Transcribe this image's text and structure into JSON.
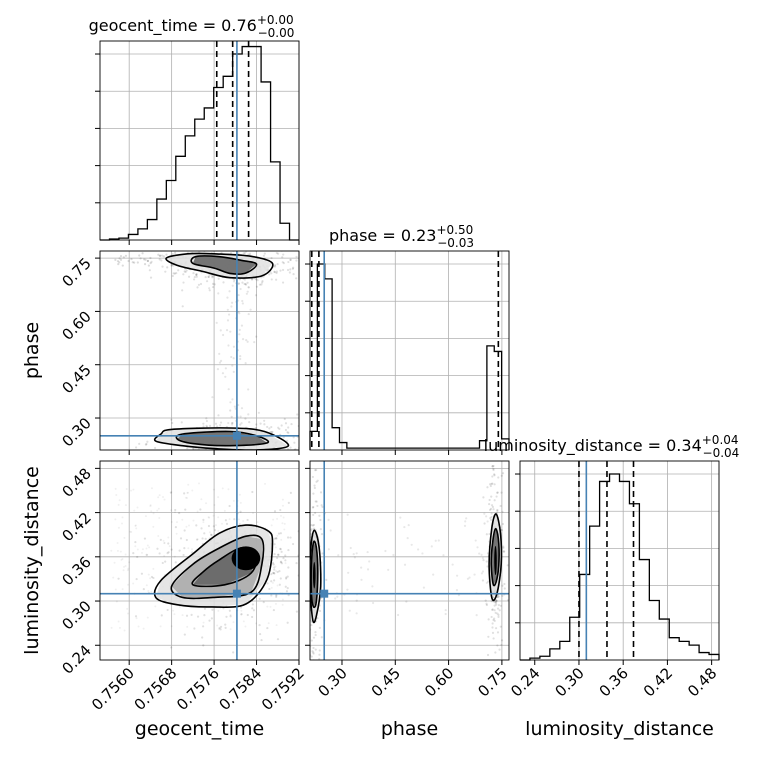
{
  "chart_data": {
    "type": "corner",
    "truths": {
      "geocent_time": 0.75803,
      "phase": 0.25,
      "luminosity_distance": 0.31
    },
    "parameters": [
      {
        "name": "geocent_time",
        "label": "geocent_time",
        "title_name": "geocent_time",
        "title_value": "0.76",
        "title_sup": "+0.00",
        "title_sub": "−0.00",
        "range": [
          0.75545,
          0.7592
        ],
        "ticks": [
          0.756,
          0.7568,
          0.7576,
          0.7584,
          0.7592
        ],
        "tick_labels": [
          "0.7560",
          "0.7568",
          "0.7576",
          "0.7584",
          "0.7592"
        ],
        "quantiles": [
          0.75765,
          0.75795,
          0.75825
        ],
        "hist": [
          0.0,
          0.005,
          0.01,
          0.03,
          0.06,
          0.11,
          0.22,
          0.32,
          0.45,
          0.56,
          0.65,
          0.71,
          0.82,
          0.88,
          1.0,
          1.04,
          1.04,
          0.85,
          0.42,
          0.09,
          0.0
        ]
      },
      {
        "name": "phase",
        "label": "phase",
        "title_name": "phase",
        "title_value": "0.23",
        "title_sup": "+0.50",
        "title_sub": "−0.03",
        "range": [
          0.21,
          0.77
        ],
        "ticks": [
          0.3,
          0.45,
          0.6,
          0.75
        ],
        "tick_labels": [
          "0.30",
          "0.45",
          "0.60",
          "0.75"
        ],
        "quantiles": [
          0.215,
          0.235,
          0.74
        ],
        "hist": [
          0.1,
          1.0,
          0.92,
          0.12,
          0.04,
          0.01,
          0.01,
          0.01,
          0.01,
          0.01,
          0.01,
          0.01,
          0.01,
          0.01,
          0.01,
          0.01,
          0.01,
          0.01,
          0.01,
          0.01,
          0.01,
          0.01,
          0.01,
          0.05,
          0.56,
          0.53,
          0.06
        ]
      },
      {
        "name": "luminosity_distance",
        "label": "luminosity_distance",
        "title_name": "luminosity_distance",
        "title_value": "0.34",
        "title_sup": "+0.04",
        "title_sub": "−0.04",
        "range": [
          0.22,
          0.49
        ],
        "ticks": [
          0.24,
          0.3,
          0.36,
          0.42,
          0.48
        ],
        "tick_labels": [
          "0.24",
          "0.30",
          "0.36",
          "0.42",
          "0.48"
        ],
        "quantiles": [
          0.3,
          0.338,
          0.374
        ],
        "hist": [
          0.0,
          0.01,
          0.02,
          0.06,
          0.1,
          0.23,
          0.46,
          0.72,
          0.96,
          1.0,
          0.96,
          0.84,
          0.54,
          0.32,
          0.22,
          0.12,
          0.1,
          0.08,
          0.04,
          0.03
        ]
      }
    ],
    "y_ticks": {
      "phase": {
        "ticks": [
          0.3,
          0.45,
          0.6,
          0.75
        ],
        "tick_labels": [
          "0.30",
          "0.45",
          "0.60",
          "0.75"
        ]
      },
      "luminosity_distance": {
        "ticks": [
          0.24,
          0.3,
          0.36,
          0.42,
          0.48
        ],
        "tick_labels": [
          "0.24",
          "0.30",
          "0.36",
          "0.42",
          "0.48"
        ]
      }
    },
    "contours": {
      "phase_vs_geocent_time": [
        {
          "level": "outer",
          "points": [
            [
              0.7571,
              0.762
            ],
            [
              0.7576,
              0.762
            ],
            [
              0.7583,
              0.755
            ],
            [
              0.7587,
              0.735
            ],
            [
              0.7585,
              0.7
            ],
            [
              0.7579,
              0.695
            ],
            [
              0.7574,
              0.712
            ],
            [
              0.7569,
              0.73
            ],
            [
              0.7567,
              0.75
            ]
          ]
        },
        {
          "level": "inner",
          "points": [
            [
              0.75725,
              0.754
            ],
            [
              0.7577,
              0.754
            ],
            [
              0.7581,
              0.744
            ],
            [
              0.7584,
              0.733
            ],
            [
              0.7582,
              0.708
            ],
            [
              0.7579,
              0.707
            ],
            [
              0.7576,
              0.722
            ],
            [
              0.7572,
              0.735
            ]
          ]
        },
        {
          "level": "outer",
          "points": [
            [
              0.7568,
              0.268
            ],
            [
              0.7579,
              0.272
            ],
            [
              0.75855,
              0.262
            ],
            [
              0.759,
              0.222
            ],
            [
              0.7584,
              0.21
            ],
            [
              0.7576,
              0.214
            ],
            [
              0.757,
              0.222
            ],
            [
              0.7565,
              0.235
            ],
            [
              0.7566,
              0.255
            ]
          ]
        },
        {
          "level": "inner",
          "points": [
            [
              0.75705,
              0.256
            ],
            [
              0.7579,
              0.262
            ],
            [
              0.7584,
              0.25
            ],
            [
              0.7586,
              0.23
            ],
            [
              0.7579,
              0.222
            ],
            [
              0.7572,
              0.228
            ],
            [
              0.7569,
              0.242
            ]
          ]
        }
      ],
      "luminosity_distance_vs_geocent_time": [
        {
          "level": "outer",
          "points": [
            [
              0.7569,
              0.295
            ],
            [
              0.75755,
              0.292
            ],
            [
              0.7582,
              0.296
            ],
            [
              0.7586,
              0.33
            ],
            [
              0.7587,
              0.38
            ],
            [
              0.7586,
              0.396
            ],
            [
              0.7582,
              0.403
            ],
            [
              0.7577,
              0.392
            ],
            [
              0.7572,
              0.364
            ],
            [
              0.7566,
              0.328
            ],
            [
              0.7565,
              0.305
            ]
          ]
        },
        {
          "level": "middle",
          "points": [
            [
              0.757,
              0.305
            ],
            [
              0.7576,
              0.305
            ],
            [
              0.7583,
              0.312
            ],
            [
              0.7585,
              0.35
            ],
            [
              0.7585,
              0.384
            ],
            [
              0.7582,
              0.388
            ],
            [
              0.7577,
              0.372
            ],
            [
              0.7572,
              0.35
            ],
            [
              0.7568,
              0.32
            ]
          ]
        },
        {
          "level": "inner",
          "points": [
            [
              0.7572,
              0.322
            ],
            [
              0.7578,
              0.322
            ],
            [
              0.7583,
              0.338
            ],
            [
              0.7584,
              0.366
            ],
            [
              0.7581,
              0.372
            ],
            [
              0.7577,
              0.356
            ],
            [
              0.7574,
              0.34
            ]
          ]
        }
      ],
      "luminosity_distance_vs_phase": [
        {
          "level": "outer",
          "points": [
            [
              0.218,
              0.274
            ],
            [
              0.228,
              0.28
            ],
            [
              0.24,
              0.32
            ],
            [
              0.236,
              0.372
            ],
            [
              0.222,
              0.396
            ],
            [
              0.212,
              0.37
            ],
            [
              0.21,
              0.32
            ]
          ]
        },
        {
          "level": "inner",
          "points": [
            [
              0.22,
              0.292
            ],
            [
              0.228,
              0.3
            ],
            [
              0.232,
              0.34
            ],
            [
              0.228,
              0.372
            ],
            [
              0.22,
              0.38
            ],
            [
              0.214,
              0.35
            ],
            [
              0.214,
              0.31
            ]
          ]
        },
        {
          "level": "outer",
          "points": [
            [
              0.722,
              0.304
            ],
            [
              0.736,
              0.31
            ],
            [
              0.748,
              0.35
            ],
            [
              0.746,
              0.392
            ],
            [
              0.734,
              0.418
            ],
            [
              0.722,
              0.4
            ],
            [
              0.714,
              0.35
            ]
          ]
        },
        {
          "level": "inner",
          "points": [
            [
              0.726,
              0.322
            ],
            [
              0.736,
              0.33
            ],
            [
              0.742,
              0.355
            ],
            [
              0.74,
              0.385
            ],
            [
              0.732,
              0.398
            ],
            [
              0.724,
              0.38
            ],
            [
              0.72,
              0.35
            ]
          ]
        }
      ]
    },
    "density_blobs": {
      "phase_vs_geocent_time": [
        [
          0.758,
          0.745,
          0.0004,
          0.025,
          0.95
        ],
        [
          0.758,
          0.715,
          0.0004,
          0.015,
          0.9
        ],
        [
          0.758,
          0.24,
          0.0005,
          0.02,
          0.9
        ],
        [
          0.7583,
          0.232,
          0.0003,
          0.012,
          0.95
        ]
      ],
      "luminosity_distance_vs_geocent_time": [
        [
          0.7579,
          0.34,
          0.0005,
          0.03,
          0.9
        ],
        [
          0.7582,
          0.358,
          0.0003,
          0.018,
          1.0
        ],
        [
          0.7576,
          0.345,
          0.0004,
          0.025,
          0.6
        ]
      ],
      "luminosity_distance_vs_phase": [
        [
          0.222,
          0.335,
          0.008,
          0.05,
          0.9
        ],
        [
          0.222,
          0.335,
          0.004,
          0.02,
          1.0
        ],
        [
          0.732,
          0.355,
          0.009,
          0.05,
          0.85
        ],
        [
          0.732,
          0.355,
          0.004,
          0.022,
          1.0
        ]
      ]
    }
  }
}
